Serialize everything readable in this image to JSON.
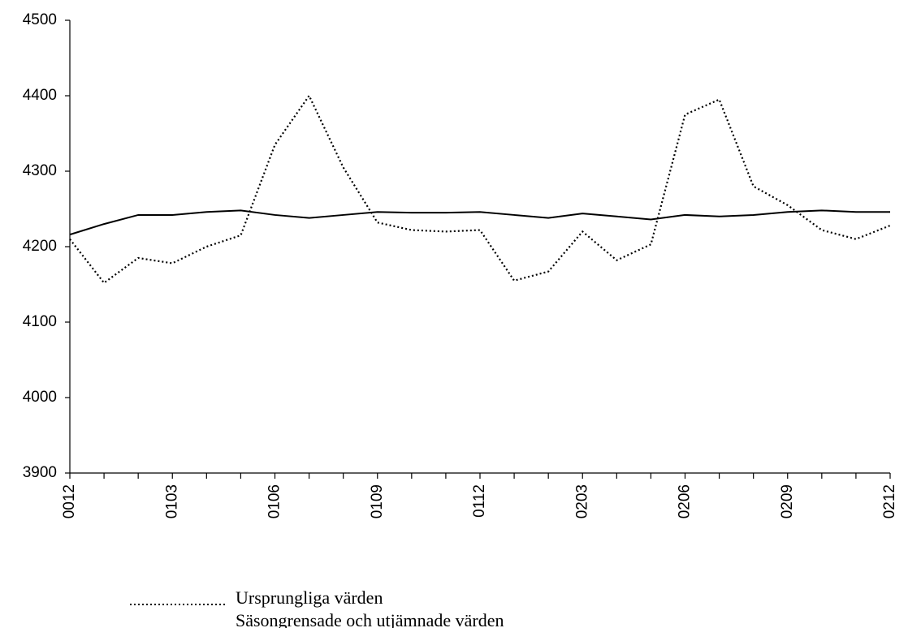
{
  "chart_data": {
    "type": "line",
    "categories": [
      "0012",
      null,
      null,
      "0103",
      null,
      null,
      "0106",
      null,
      null,
      "0109",
      null,
      null,
      "0112",
      null,
      null,
      "0203",
      null,
      null,
      "0206",
      null,
      null,
      "0209",
      null,
      null,
      "0212"
    ],
    "series": [
      {
        "name": "Ursprungliga värden",
        "color": "#000000",
        "line_style": "dotted",
        "values": [
          4210,
          4152,
          4185,
          4178,
          4200,
          4215,
          4335,
          4400,
          4305,
          4232,
          4222,
          4220,
          4222,
          4155,
          4167,
          4220,
          4182,
          4203,
          4375,
          4395,
          4280,
          4255,
          4222,
          4210,
          4228
        ]
      },
      {
        "name": "Säsongrensade och utjämnade värden",
        "color": "#000000",
        "line_style": "solid",
        "values": [
          4216,
          4230,
          4242,
          4242,
          4246,
          4248,
          4242,
          4238,
          4242,
          4246,
          4245,
          4245,
          4246,
          4242,
          4238,
          4244,
          4240,
          4236,
          4242,
          4240,
          4242,
          4246,
          4248,
          4246,
          4246
        ]
      }
    ],
    "ylim": [
      3900,
      4500
    ],
    "yticks": [
      3900,
      4000,
      4100,
      4200,
      4300,
      4400,
      4500
    ],
    "grid": false
  }
}
